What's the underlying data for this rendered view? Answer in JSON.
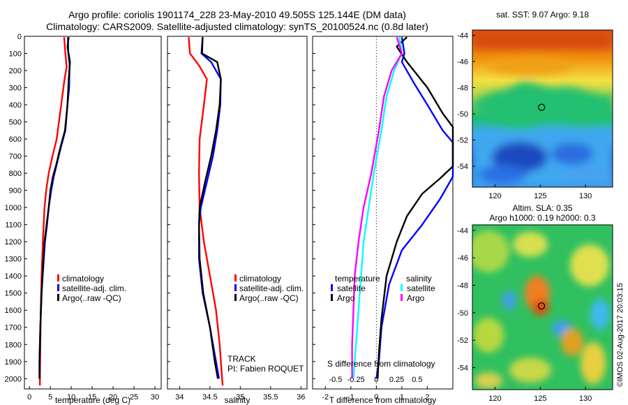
{
  "header": {
    "line1": "Argo profile: coriolis 1901174_228 23-May-2010 49.505S 125.144E (DM data)",
    "line2": "Climatology: CARS2009. Satellite-adjusted climatology: synTS_20100524.nc (0.8d later)"
  },
  "colors": {
    "climatology": "#ff0000",
    "satellite": "#0000ff",
    "argo": "#000000",
    "salinity_sat": "#00ffff",
    "salinity_argo": "#ff00ff"
  },
  "chart_data": [
    {
      "id": "temperature",
      "type": "line",
      "xlabel": "temperature (deg C)",
      "xticks": [
        0,
        5,
        10,
        15,
        20,
        25,
        30
      ],
      "xlim": [
        -1.2,
        31.5
      ],
      "ylim": [
        2060,
        0
      ],
      "yticks": [
        0,
        100,
        200,
        300,
        400,
        500,
        600,
        700,
        800,
        900,
        1000,
        1100,
        1200,
        1300,
        1400,
        1500,
        1600,
        1700,
        1800,
        1900,
        2000
      ],
      "legend": [
        "climatology",
        "satellite-adj. clim.",
        "Argo(..raw -QC)"
      ],
      "series": [
        {
          "name": "climatology",
          "color": "#ff0000",
          "points": [
            [
              8.3,
              5
            ],
            [
              8.6,
              100
            ],
            [
              8.9,
              180
            ],
            [
              8.4,
              250
            ],
            [
              7.6,
              400
            ],
            [
              6.5,
              600
            ],
            [
              5.5,
              700
            ],
            [
              4.6,
              800
            ],
            [
              4.0,
              900
            ],
            [
              3.6,
              1000
            ],
            [
              3.2,
              1200
            ],
            [
              2.9,
              1400
            ],
            [
              2.7,
              1600
            ],
            [
              2.6,
              1800
            ],
            [
              2.5,
              2000
            ],
            [
              2.5,
              2040
            ]
          ]
        },
        {
          "name": "satellite-adj. clim.",
          "color": "#0000ff",
          "points": [
            [
              9.2,
              5
            ],
            [
              9.3,
              100
            ],
            [
              9.6,
              160
            ],
            [
              9.5,
              300
            ],
            [
              9.1,
              400
            ],
            [
              8.6,
              550
            ],
            [
              7.5,
              650
            ],
            [
              6.5,
              750
            ],
            [
              5.8,
              820
            ],
            [
              5.2,
              900
            ],
            [
              4.6,
              1000
            ],
            [
              4.2,
              1100
            ],
            [
              3.7,
              1200
            ],
            [
              3.3,
              1350
            ],
            [
              2.9,
              1500
            ],
            [
              2.6,
              1700
            ],
            [
              2.4,
              1900
            ],
            [
              2.4,
              2000
            ]
          ]
        },
        {
          "name": "Argo(..raw -QC)",
          "color": "#000000",
          "points": [
            [
              9.4,
              5
            ],
            [
              9.1,
              60
            ],
            [
              9.7,
              150
            ],
            [
              9.4,
              250
            ],
            [
              9.1,
              400
            ],
            [
              8.5,
              550
            ],
            [
              7.4,
              650
            ],
            [
              6.4,
              750
            ],
            [
              5.6,
              820
            ],
            [
              5.0,
              900
            ],
            [
              4.6,
              1000
            ],
            [
              4.1,
              1100
            ],
            [
              3.6,
              1200
            ],
            [
              3.2,
              1350
            ],
            [
              2.9,
              1500
            ],
            [
              2.6,
              1700
            ],
            [
              2.4,
              1900
            ],
            [
              2.4,
              2000
            ]
          ]
        }
      ]
    },
    {
      "id": "salinity",
      "type": "line",
      "xlabel": "salinity",
      "xticks": [
        34,
        34.5,
        35,
        35.5,
        36
      ],
      "xlim": [
        33.8,
        36.1
      ],
      "ylim": [
        2060,
        0
      ],
      "legend": [
        "climatology",
        "satellite-adj. clim.",
        "Argo(..raw -QC)"
      ],
      "annotation": [
        "TRACK",
        "PI: Fabien ROQUET"
      ],
      "series": [
        {
          "name": "climatology",
          "color": "#ff0000",
          "points": [
            [
              34.15,
              5
            ],
            [
              34.17,
              100
            ],
            [
              34.32,
              170
            ],
            [
              34.45,
              250
            ],
            [
              34.4,
              400
            ],
            [
              34.33,
              600
            ],
            [
              34.32,
              800
            ],
            [
              34.33,
              1000
            ],
            [
              34.4,
              1200
            ],
            [
              34.5,
              1400
            ],
            [
              34.6,
              1600
            ],
            [
              34.66,
              1800
            ],
            [
              34.7,
              2000
            ],
            [
              34.71,
              2040
            ]
          ]
        },
        {
          "name": "satellite-adj. clim.",
          "color": "#0000ff",
          "points": [
            [
              34.38,
              5
            ],
            [
              34.36,
              100
            ],
            [
              34.52,
              150
            ],
            [
              34.68,
              250
            ],
            [
              34.67,
              400
            ],
            [
              34.62,
              550
            ],
            [
              34.55,
              700
            ],
            [
              34.45,
              850
            ],
            [
              34.35,
              1000
            ],
            [
              34.32,
              1100
            ],
            [
              34.32,
              1300
            ],
            [
              34.38,
              1500
            ],
            [
              34.5,
              1700
            ],
            [
              34.6,
              1900
            ],
            [
              34.65,
              2000
            ]
          ]
        },
        {
          "name": "Argo(..raw -QC)",
          "color": "#000000",
          "points": [
            [
              34.38,
              5
            ],
            [
              34.37,
              100
            ],
            [
              34.62,
              150
            ],
            [
              34.68,
              250
            ],
            [
              34.66,
              400
            ],
            [
              34.6,
              550
            ],
            [
              34.52,
              700
            ],
            [
              34.42,
              850
            ],
            [
              34.33,
              1000
            ],
            [
              34.32,
              1100
            ],
            [
              34.33,
              1300
            ],
            [
              34.39,
              1500
            ],
            [
              34.5,
              1700
            ],
            [
              34.58,
              1900
            ],
            [
              34.63,
              2000
            ]
          ]
        }
      ]
    },
    {
      "id": "difference",
      "type": "line",
      "xlabel": "T difference from climatology",
      "xticks": [
        -2,
        -1,
        0,
        1,
        2
      ],
      "xlim": [
        -2.5,
        3.0
      ],
      "xlabel_top": "S difference from climatology",
      "xticks_top_labels": [
        "-0.5",
        "-0.25",
        "0",
        "0.25",
        "0.5"
      ],
      "ylim": [
        2060,
        0
      ],
      "legend_temperature": {
        "title": "temperature",
        "items": [
          "satellite",
          "Argo"
        ]
      },
      "legend_salinity": {
        "title": "salinity",
        "items": [
          "satellite",
          "Argo"
        ]
      },
      "series": [
        {
          "name": "temperature satellite",
          "color": "#0000ff",
          "points": [
            [
              1.0,
              5
            ],
            [
              1.1,
              100
            ],
            [
              1.0,
              150
            ],
            [
              1.5,
              280
            ],
            [
              2.0,
              400
            ],
            [
              2.6,
              550
            ],
            [
              3.0,
              620
            ],
            [
              3.0,
              820
            ],
            [
              2.5,
              950
            ],
            [
              1.8,
              1100
            ],
            [
              1.0,
              1250
            ],
            [
              0.5,
              1450
            ],
            [
              0.2,
              1700
            ],
            [
              0.1,
              1900
            ],
            [
              0.0,
              2000
            ]
          ]
        },
        {
          "name": "temperature Argo",
          "color": "#000000",
          "points": [
            [
              1.2,
              5
            ],
            [
              0.8,
              60
            ],
            [
              1.2,
              150
            ],
            [
              2.0,
              300
            ],
            [
              2.6,
              450
            ],
            [
              3.0,
              530
            ],
            [
              3.0,
              760
            ],
            [
              2.5,
              830
            ],
            [
              1.8,
              920
            ],
            [
              1.2,
              1050
            ],
            [
              0.8,
              1200
            ],
            [
              0.4,
              1400
            ],
            [
              0.2,
              1650
            ],
            [
              0.1,
              1850
            ],
            [
              0.05,
              2000
            ]
          ]
        },
        {
          "name": "salinity satellite",
          "color": "#00ffff",
          "points": [
            [
              0.9,
              5
            ],
            [
              1.0,
              100
            ],
            [
              0.7,
              200
            ],
            [
              0.4,
              350
            ],
            [
              0.2,
              550
            ],
            [
              -0.1,
              800
            ],
            [
              -0.3,
              1000
            ],
            [
              -0.5,
              1200
            ],
            [
              -0.6,
              1400
            ],
            [
              -0.7,
              1600
            ],
            [
              -0.8,
              1800
            ],
            [
              -0.9,
              2000
            ]
          ]
        },
        {
          "name": "salinity Argo",
          "color": "#ff00ff",
          "points": [
            [
              0.8,
              5
            ],
            [
              1.0,
              100
            ],
            [
              0.6,
              200
            ],
            [
              0.3,
              350
            ],
            [
              0.1,
              550
            ],
            [
              -0.2,
              800
            ],
            [
              -0.5,
              1000
            ],
            [
              -0.7,
              1200
            ],
            [
              -0.85,
              1400
            ],
            [
              -0.9,
              1600
            ],
            [
              -0.95,
              1800
            ],
            [
              -0.95,
              2000
            ]
          ]
        }
      ]
    }
  ],
  "maps": {
    "sst": {
      "title": "sat. SST: 9.07  Argo: 9.18",
      "xticks": [
        "120",
        "125",
        "130"
      ],
      "yticks": [
        "-44",
        "-46",
        "-48",
        "-50",
        "-52",
        "-54"
      ],
      "marker": {
        "lon": 125.144,
        "lat": -49.505
      }
    },
    "sla": {
      "title1": "Altim. SLA: 0.35",
      "title2": "Argo h1000: 0.19 h2000: 0.3",
      "xticks": [
        "120",
        "125",
        "130"
      ],
      "yticks": [
        "-44",
        "-46",
        "-48",
        "-50",
        "-52",
        "-54"
      ],
      "marker": {
        "lon": 125.144,
        "lat": -49.505
      }
    },
    "lon_range": [
      117.5,
      133
    ],
    "lat_range": [
      -55.6,
      -43.6
    ]
  },
  "footer_vertical": "©IMOS 02-Aug-2017 20:03:15"
}
